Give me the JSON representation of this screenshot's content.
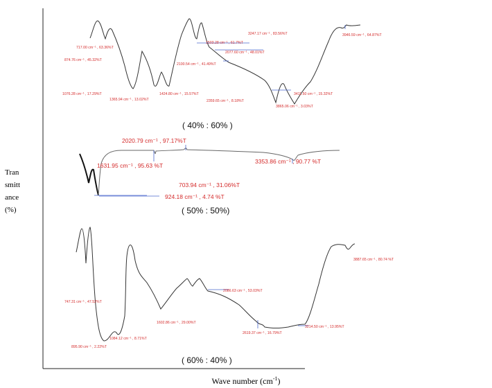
{
  "axes": {
    "ylabel": "Transmittance (%)",
    "xlabel_text": "Wave number (cm",
    "xlabel_sup": "-1",
    "xlabel_close": ")"
  },
  "chart_data": [
    {
      "type": "line",
      "title": "( 40% : 60% )",
      "annotations": [
        "717.00 cm⁻¹ , 63.36%T",
        "874.76 cm⁻¹ , 45.32%T",
        "1076.28 cm⁻¹ , 17.29%T",
        "1365.94 cm⁻¹ , 13.02%T",
        "1424.80 cm⁻¹ , 15.57%T",
        "1503.28 cm⁻¹ , 61.7%T",
        "2077.60 cm⁻¹ , 48.01%T",
        "2100.54 cm⁻¹ , 41.49%T",
        "2359.65 cm⁻¹ , 8.18%T",
        "3247.17 cm⁻¹ , 83.56%T",
        "3411.50 cm⁻¹ , 15.32%T",
        "3865.06 cm⁻¹ , 3.03%T",
        "3946.59 cm⁻¹ , 64.87%T"
      ]
    },
    {
      "type": "line",
      "title": "( 50% : 50%)",
      "annotations": [
        "2020.79 cm⁻¹ , 97.17%T",
        "1631.95 cm⁻¹ , 95.63 %T",
        "3353.86 cm⁻¹ , 90.77 %T",
        "703.94 cm⁻¹ , 31.06%T",
        "924.18 cm⁻¹ , 4.74 %T"
      ]
    },
    {
      "type": "line",
      "title": "( 60% : 40% )",
      "annotations": [
        "747.31 cm⁻¹ , 47.52%T",
        "895.90 cm⁻¹ , 2.22%T",
        "1084.12 cm⁻¹ , 8.71%T",
        "1602.86 cm⁻¹ , 29.00%T",
        "2086.63 cm⁻¹ , 53.03%T",
        "2619.37 cm⁻¹ , 16.79%T",
        "3214.50 cm⁻¹ , 13.95%T",
        "3887.65 cm⁻¹ , 80.74 %T"
      ]
    }
  ]
}
